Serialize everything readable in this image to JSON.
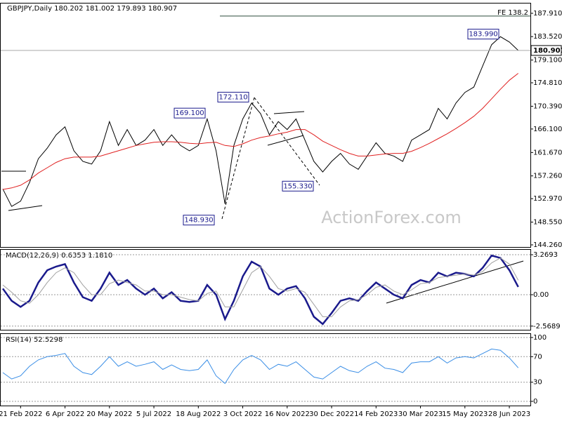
{
  "chart_data": [
    {
      "type": "line",
      "title": "GBPJPY,Daily  180.202 181.002 179.893 180.907",
      "watermark": "ActionForex.com",
      "categories": [
        null,
        null,
        "21 Feb 2022",
        null,
        null,
        null,
        null,
        "6 Apr 2022",
        null,
        null,
        null,
        null,
        "20 May 2022",
        null,
        null,
        null,
        null,
        "5 Jul 2022",
        null,
        null,
        null,
        null,
        "18 Aug 2022",
        null,
        null,
        null,
        null,
        "3 Oct 2022",
        null,
        null,
        null,
        null,
        "16 Nov 2022",
        null,
        null,
        null,
        null,
        "30 Dec 2022",
        null,
        null,
        null,
        null,
        "14 Feb 2023",
        null,
        null,
        null,
        null,
        "30 Mar 2023",
        null,
        null,
        null,
        null,
        "15 May 2023",
        null,
        null,
        null,
        null,
        "28 Jun 2023",
        null
      ],
      "series": [
        {
          "color": "#000000",
          "values": [
            154.8,
            151.5,
            152.5,
            156,
            160.5,
            162.5,
            165,
            166.5,
            162,
            160,
            159.5,
            162,
            167.5,
            163,
            166,
            163,
            164,
            166,
            163,
            165,
            163,
            162,
            163,
            168,
            162,
            152,
            163,
            168,
            171,
            169,
            165,
            167.5,
            166,
            168,
            164,
            160,
            158,
            160,
            161.5,
            159.5,
            158.5,
            161,
            163.5,
            161.5,
            161,
            160,
            164,
            165,
            166,
            170,
            168,
            171,
            173,
            174,
            178,
            182,
            183.5,
            182.5,
            180.907
          ]
        },
        {
          "color": "#e02020",
          "values": [
            154.7,
            155.0,
            155.5,
            156.5,
            157.8,
            158.8,
            159.8,
            160.5,
            160.8,
            160.8,
            160.8,
            161.0,
            161.5,
            162.0,
            162.5,
            163.0,
            163.3,
            163.6,
            163.7,
            163.7,
            163.6,
            163.4,
            163.3,
            163.5,
            163.6,
            163.0,
            162.8,
            163.3,
            164.0,
            164.5,
            164.8,
            165.2,
            165.5,
            166.0,
            166.0,
            165.0,
            163.8,
            163.0,
            162.2,
            161.5,
            161.0,
            161.0,
            161.2,
            161.4,
            161.5,
            161.5,
            161.9,
            162.6,
            163.4,
            164.3,
            165.2,
            166.2,
            167.3,
            168.5,
            170.0,
            171.8,
            173.6,
            175.3,
            176.6
          ]
        }
      ],
      "ylim": [
        143.86,
        189.89
      ],
      "yticks": [
        {
          "value": 187.91,
          "label": "187.910"
        },
        {
          "value": 183.52,
          "label": "183.520"
        },
        {
          "value": 179.1,
          "label": "179.100"
        },
        {
          "value": 174.81,
          "label": "174.810"
        },
        {
          "value": 170.39,
          "label": "170.390"
        },
        {
          "value": 166.1,
          "label": "166.100"
        },
        {
          "value": 161.67,
          "label": "161.670"
        },
        {
          "value": 157.26,
          "label": "157.260"
        },
        {
          "value": 152.97,
          "label": "152.970"
        },
        {
          "value": 148.55,
          "label": "148.550"
        },
        {
          "value": 144.26,
          "label": "144.260"
        }
      ],
      "grid": false,
      "last_price": 180.907,
      "fe_level": {
        "text": "FE 138.2",
        "value": 187.4
      },
      "annotations": [
        {
          "value": 183.99,
          "label": "183.990"
        },
        {
          "value": 172.11,
          "label": "172.110"
        },
        {
          "value": 169.1,
          "label": "169.100"
        },
        {
          "value": 155.33,
          "label": "155.330"
        },
        {
          "value": 148.93,
          "label": "148.930"
        }
      ]
    },
    {
      "type": "line",
      "title": "MACD(12,26,9) 0.6353 1.1810",
      "series": [
        {
          "color": "#1a1a8c",
          "values": [
            0.5,
            -0.5,
            -1.0,
            -0.5,
            1.0,
            2.0,
            2.3,
            2.5,
            1.0,
            -0.2,
            -0.5,
            0.5,
            1.8,
            0.8,
            1.2,
            0.5,
            0,
            0.5,
            -0.3,
            0.2,
            -0.5,
            -0.6,
            -0.5,
            0.8,
            0,
            -2.0,
            -0.5,
            1.5,
            2.7,
            2.3,
            0.5,
            0,
            0.5,
            0.7,
            -0.3,
            -1.8,
            -2.4,
            -1.5,
            -0.5,
            -0.3,
            -0.5,
            0.3,
            1.0,
            0.5,
            0,
            -0.3,
            0.8,
            1.2,
            1.0,
            1.8,
            1.5,
            1.8,
            1.7,
            1.5,
            2.2,
            3.2,
            3.0,
            2.0,
            0.6353
          ]
        },
        {
          "color": "#a0a0a0",
          "values": [
            0.8,
            0.2,
            -0.5,
            -0.7,
            0,
            1.0,
            1.8,
            2.2,
            1.8,
            0.8,
            0,
            0,
            0.9,
            1.2,
            1.0,
            0.8,
            0.3,
            0.3,
            0,
            0,
            -0.2,
            -0.4,
            -0.5,
            0.1,
            0.3,
            -1.0,
            -1.0,
            0.4,
            1.8,
            2.3,
            1.5,
            0.5,
            0.3,
            0.5,
            0.2,
            -0.8,
            -1.8,
            -1.8,
            -1.0,
            -0.5,
            -0.4,
            0,
            0.6,
            0.8,
            0.3,
            0,
            0.4,
            0.9,
            1.0,
            1.4,
            1.5,
            1.6,
            1.7,
            1.6,
            1.9,
            2.6,
            3.0,
            2.5,
            1.181
          ]
        }
      ],
      "ylim": [
        -2.87,
        3.73
      ],
      "yticks": [
        3.2693,
        {
          "value": 0,
          "label": "0.00"
        },
        -2.5689
      ],
      "grid": true
    },
    {
      "type": "line",
      "title": "RSI(14) 52.5298",
      "series": [
        {
          "color": "#3a8ee6",
          "values": [
            45,
            35,
            40,
            55,
            65,
            70,
            72,
            75,
            55,
            45,
            42,
            55,
            70,
            55,
            62,
            55,
            58,
            62,
            50,
            57,
            50,
            48,
            50,
            65,
            40,
            28,
            50,
            65,
            72,
            65,
            50,
            58,
            55,
            62,
            50,
            38,
            35,
            45,
            55,
            48,
            45,
            55,
            62,
            52,
            50,
            45,
            60,
            62,
            62,
            70,
            60,
            68,
            70,
            68,
            75,
            82,
            80,
            68,
            52.5298
          ]
        }
      ],
      "ylim": [
        -6.6,
        106.6
      ],
      "yticks": [
        100,
        70,
        30,
        0
      ],
      "grid": true
    }
  ]
}
